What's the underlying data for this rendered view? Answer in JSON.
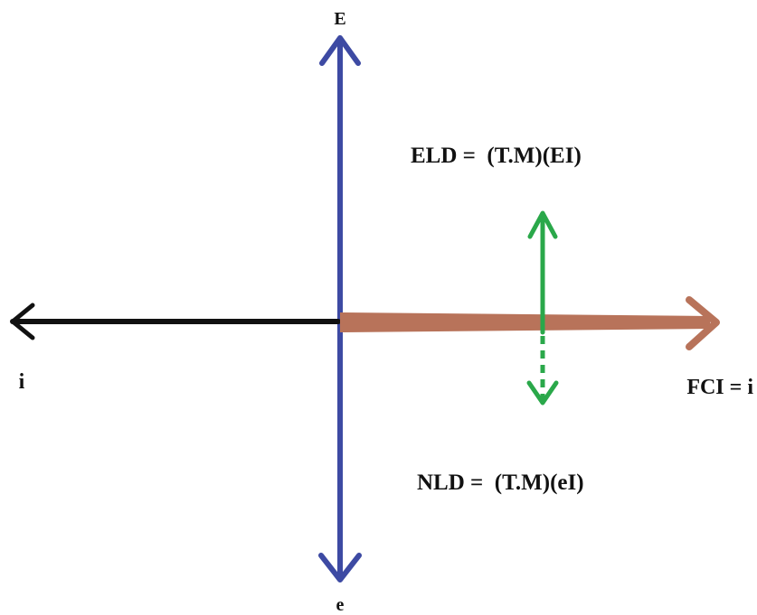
{
  "labels": {
    "top": "E",
    "bottom": "e",
    "left": "i",
    "right": "FCI = i",
    "upper_equation": "ELD =  (T.M)(EI)",
    "lower_equation": "NLD =  (T.M)(eI)"
  },
  "colors": {
    "vertical_axis": "#3d4aa3",
    "left_arrow": "#111111",
    "right_arrow": "#b8735a",
    "green_arrow": "#2aa84a",
    "text": "#111111"
  },
  "icons": {
    "vertical_axis": "double-headed-arrow",
    "left_arrow": "arrow-left",
    "right_arrow": "arrow-right",
    "green_arrow": "double-headed-arrow-partly-dashed"
  }
}
